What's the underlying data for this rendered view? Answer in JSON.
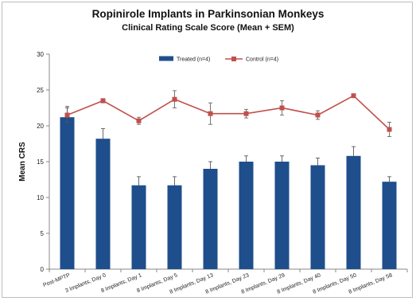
{
  "chart_data": {
    "type": "bar",
    "title": "Ropinirole Implants in Parkinsonian Monkeys",
    "subtitle": "Clinical Rating Scale Score (Mean + SEM)",
    "xlabel": "",
    "ylabel": "Mean CRS",
    "ylim": [
      0,
      30
    ],
    "yticks": [
      0,
      5,
      10,
      15,
      20,
      25,
      30
    ],
    "grid": false,
    "legend_position": "top-center",
    "categories": [
      "Post-MPTP",
      "3 Implants, Day 0",
      "8 Implants, Day 1",
      "8 Implants, Day 5",
      "8 Implants, Day 13",
      "8 Implants, Day 23",
      "8 Implants, Day 29",
      "8 Implants, Day 40",
      "8 Implants, Day 50",
      "8 Implants, Day 58"
    ],
    "series": [
      {
        "name": "Treated (n=4)",
        "kind": "bar",
        "color": "#1f4e8c",
        "values": [
          21.2,
          18.2,
          11.7,
          11.7,
          14.0,
          15.0,
          15.0,
          14.5,
          15.8,
          12.2
        ],
        "sem": [
          1.5,
          1.4,
          1.2,
          1.2,
          1.0,
          0.8,
          0.8,
          1.0,
          1.3,
          0.7
        ]
      },
      {
        "name": "Control (n=4)",
        "kind": "line",
        "color": "#c0504d",
        "values": [
          21.5,
          23.5,
          20.7,
          23.7,
          21.7,
          21.7,
          22.5,
          21.5,
          24.2,
          19.5
        ],
        "sem": [
          1.0,
          0.3,
          0.5,
          1.2,
          1.5,
          0.6,
          1.0,
          0.6,
          0.2,
          1.0
        ]
      }
    ]
  }
}
